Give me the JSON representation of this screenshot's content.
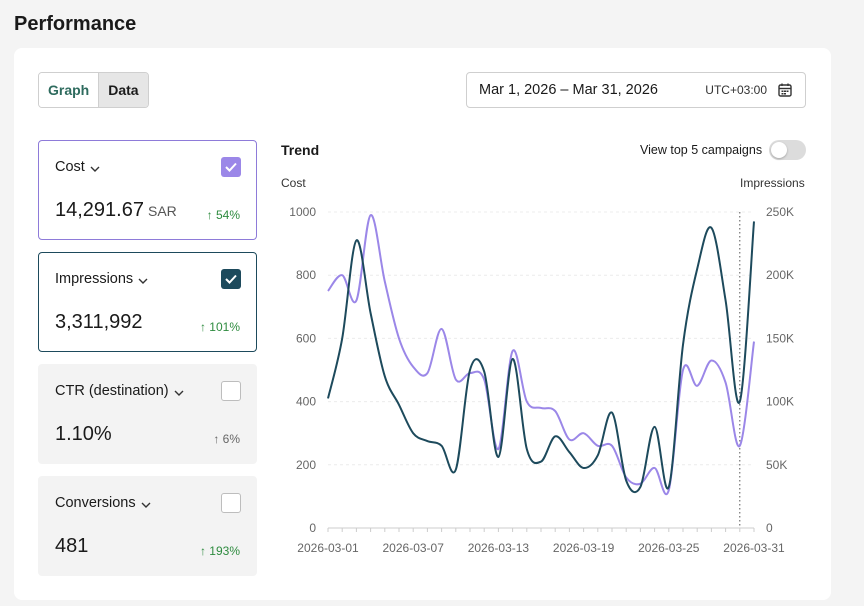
{
  "page": {
    "title": "Performance"
  },
  "view_toggle": {
    "graph_label": "Graph",
    "data_label": "Data",
    "selected": "Graph"
  },
  "date_picker": {
    "range": "Mar 1, 2026 – Mar 31, 2026",
    "timezone": "UTC+03:00",
    "icon": "calendar-icon"
  },
  "metrics": [
    {
      "name": "Cost",
      "value": "14,291.67",
      "unit": "SAR",
      "change": "↑ 54%",
      "checked": true,
      "color": "#9b87e8"
    },
    {
      "name": "Impressions",
      "value": "3,311,992",
      "unit": "",
      "change": "↑ 101%",
      "checked": true,
      "color": "#1d4a5c"
    },
    {
      "name": "CTR (destination)",
      "value": "1.10%",
      "unit": "",
      "change": "↑ 6%",
      "checked": false
    },
    {
      "name": "Conversions",
      "value": "481",
      "unit": "",
      "change": "↑ 193%",
      "checked": false
    }
  ],
  "trend": {
    "title": "Trend",
    "toggle_label": "View top 5 campaigns",
    "toggle_on": false,
    "left_axis_title": "Cost",
    "right_axis_title": "Impressions"
  },
  "chart_data": {
    "type": "line",
    "x": [
      "2026-03-01",
      "2026-03-02",
      "2026-03-03",
      "2026-03-04",
      "2026-03-05",
      "2026-03-06",
      "2026-03-07",
      "2026-03-08",
      "2026-03-09",
      "2026-03-10",
      "2026-03-11",
      "2026-03-12",
      "2026-03-13",
      "2026-03-14",
      "2026-03-15",
      "2026-03-16",
      "2026-03-17",
      "2026-03-18",
      "2026-03-19",
      "2026-03-20",
      "2026-03-21",
      "2026-03-22",
      "2026-03-23",
      "2026-03-24",
      "2026-03-25",
      "2026-03-26",
      "2026-03-27",
      "2026-03-28",
      "2026-03-29",
      "2026-03-30",
      "2026-03-31"
    ],
    "x_tick_labels": [
      "2026-03-01",
      "2026-03-07",
      "2026-03-13",
      "2026-03-19",
      "2026-03-25",
      "2026-03-31"
    ],
    "series": [
      {
        "name": "Cost",
        "axis": "left",
        "color": "#9b87e8",
        "values": [
          750,
          800,
          720,
          990,
          780,
          600,
          510,
          490,
          630,
          470,
          490,
          470,
          250,
          560,
          400,
          380,
          370,
          280,
          300,
          260,
          260,
          160,
          140,
          190,
          120,
          500,
          450,
          530,
          460,
          260,
          590
        ]
      },
      {
        "name": "Impressions",
        "axis": "right",
        "color": "#1d4a5c",
        "values": [
          102500,
          150000,
          227500,
          170000,
          120000,
          97500,
          75000,
          68750,
          65000,
          46250,
          125000,
          123750,
          56250,
          133750,
          62500,
          52500,
          72500,
          60000,
          47500,
          57500,
          91250,
          37500,
          32500,
          80000,
          32500,
          145000,
          205000,
          237500,
          180000,
          100000,
          242500
        ]
      }
    ],
    "ylim_left": [
      0,
      1000
    ],
    "ylim_right": [
      0,
      250000
    ],
    "y_ticks_left": [
      "0",
      "200",
      "400",
      "600",
      "800",
      "1000"
    ],
    "y_ticks_right": [
      "0",
      "50K",
      "100K",
      "150K",
      "200K",
      "250K"
    ],
    "grid": true,
    "marker_line": "2026-03-30"
  }
}
